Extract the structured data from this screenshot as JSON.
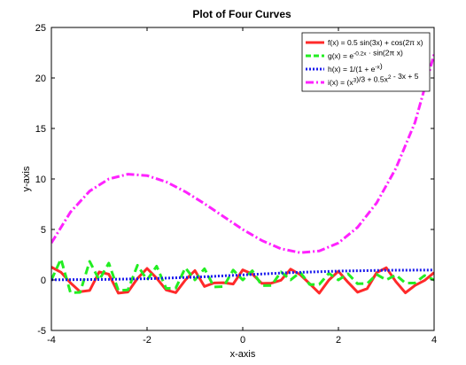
{
  "chart_data": {
    "type": "line",
    "title": "Plot of Four Curves",
    "xlabel": "x-axis",
    "ylabel": "y-axis",
    "xlim": [
      -4,
      4
    ],
    "ylim": [
      -5,
      25
    ],
    "xticks": [
      -4,
      -2,
      0,
      2,
      4
    ],
    "yticks": [
      -5,
      0,
      5,
      10,
      15,
      20,
      25
    ],
    "grid": false,
    "legend_position": "top-right",
    "series": [
      {
        "name": "f(x) = 0.5 sin(3x) + cos(2πx)",
        "legend": {
          "pre": "f(x) = 0.5 sin(3x) + cos(2π x)"
        },
        "color": "#ff2a2a",
        "style": "solid",
        "x": [
          -4.0,
          -3.8,
          -3.6,
          -3.4,
          -3.2,
          -3.0,
          -2.8,
          -2.6,
          -2.4,
          -2.2,
          -2.0,
          -1.8,
          -1.6,
          -1.4,
          -1.2,
          -1.0,
          -0.8,
          -0.6,
          -0.4,
          -0.2,
          0.0,
          0.2,
          0.4,
          0.6,
          0.8,
          1.0,
          1.2,
          1.4,
          1.6,
          1.8,
          2.0,
          2.2,
          2.4,
          2.6,
          2.8,
          3.0,
          3.2,
          3.4,
          3.6,
          3.8,
          4.0
        ],
        "y": [
          1.27,
          0.76,
          -0.3,
          -1.16,
          -1.04,
          0.8,
          0.57,
          -1.31,
          -1.19,
          0.15,
          1.14,
          0.18,
          -0.99,
          -1.25,
          -0.01,
          0.93,
          -0.64,
          -0.3,
          -0.27,
          -0.4,
          1.0,
          0.59,
          -0.34,
          -0.32,
          -0.03,
          1.07,
          0.53,
          -0.38,
          -1.31,
          -0.01,
          0.86,
          -0.23,
          -1.21,
          -0.86,
          0.73,
          1.21,
          -0.16,
          -1.27,
          -0.54,
          -0.05,
          0.73
        ]
      },
      {
        "name": "g(x) = e^(-0.2x) · sin(2πx)",
        "legend": {
          "pre": "g(x) = e",
          "sup": "-0.2x",
          "post": " · sin(2π x)"
        },
        "color": "#22ee22",
        "style": "dashed",
        "x": [
          -4.0,
          -3.8,
          -3.6,
          -3.4,
          -3.2,
          -3.0,
          -2.8,
          -2.6,
          -2.4,
          -2.2,
          -2.0,
          -1.8,
          -1.6,
          -1.4,
          -1.2,
          -1.0,
          -0.8,
          -0.6,
          -0.4,
          -0.2,
          0.0,
          0.2,
          0.4,
          0.6,
          0.8,
          1.0,
          1.2,
          1.4,
          1.6,
          1.8,
          2.0,
          2.2,
          2.4,
          2.6,
          2.8,
          3.0,
          3.2,
          3.4,
          3.6,
          3.8,
          4.0
        ],
        "y": [
          0.0,
          2.08,
          -1.27,
          -1.23,
          1.84,
          0.0,
          1.67,
          -1.04,
          -0.98,
          1.46,
          0.0,
          1.36,
          -0.84,
          -0.81,
          1.2,
          0.0,
          1.11,
          -0.69,
          -0.66,
          0.98,
          0.0,
          0.91,
          -0.56,
          -0.54,
          0.8,
          0.0,
          0.75,
          -0.46,
          -0.44,
          0.66,
          0.0,
          0.61,
          -0.38,
          -0.36,
          0.54,
          0.0,
          0.5,
          -0.31,
          -0.3,
          0.44,
          0.0
        ]
      },
      {
        "name": "h(x) = 1/(1 + e^(-x))",
        "legend": {
          "pre": "h(x) = 1/(1 + e",
          "sup": "-x",
          "post": ")"
        },
        "color": "#1a1aee",
        "style": "dotted",
        "x": [
          -4.0,
          -3.0,
          -2.0,
          -1.0,
          0.0,
          1.0,
          2.0,
          3.0,
          4.0
        ],
        "y": [
          0.018,
          0.047,
          0.119,
          0.269,
          0.5,
          0.731,
          0.881,
          0.953,
          0.982
        ]
      },
      {
        "name": "i(x) = (x³)/3 + 0.5x² - 3x + 5",
        "legend": {
          "pre": "i(x) = (x",
          "sup": "3",
          "mid": ")/3 + 0.5x",
          "sup2": "2",
          "post": " - 3x + 5"
        },
        "color": "#ff22ff",
        "style": "dashdot",
        "x": [
          -4.0,
          -3.6,
          -3.2,
          -2.8,
          -2.4,
          -2.0,
          -1.6,
          -1.2,
          -0.8,
          -0.4,
          0.0,
          0.4,
          0.8,
          1.2,
          1.6,
          2.0,
          2.4,
          2.8,
          3.2,
          3.6,
          4.0
        ],
        "y": [
          3.67,
          6.73,
          8.8,
          10.0,
          10.47,
          10.33,
          9.71,
          8.74,
          7.55,
          6.27,
          5.0,
          3.9,
          3.09,
          2.7,
          2.87,
          3.67,
          5.21,
          7.64,
          11.04,
          15.59,
          22.33
        ]
      }
    ]
  }
}
